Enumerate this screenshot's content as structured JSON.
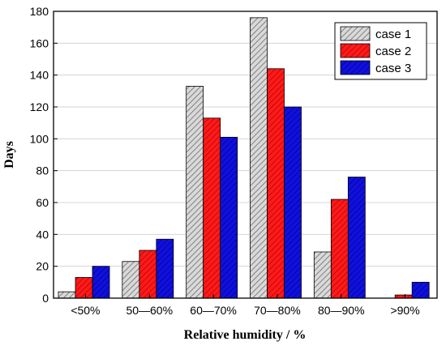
{
  "chart_data": {
    "type": "bar",
    "title": "",
    "xlabel": "Relative humidity / %",
    "ylabel": "Days",
    "ylim": [
      0,
      180
    ],
    "yticks": [
      0,
      20,
      40,
      60,
      80,
      100,
      120,
      140,
      160,
      180
    ],
    "grid": "horizontal",
    "legend_position": "top-right",
    "categories": [
      "<50%",
      "50—60%",
      "60—70%",
      "70—80%",
      "80—90%",
      ">90%"
    ],
    "series": [
      {
        "name": "case 1",
        "values": [
          4,
          23,
          133,
          176,
          29,
          0
        ],
        "color": "#bcbcbc",
        "pattern": "hatched"
      },
      {
        "name": "case 2",
        "values": [
          13,
          30,
          113,
          144,
          62,
          2
        ],
        "color": "#ee0000",
        "pattern": "hatched"
      },
      {
        "name": "case 3",
        "values": [
          20,
          37,
          101,
          120,
          76,
          10
        ],
        "color": "#0000cc",
        "pattern": "hatched"
      }
    ]
  }
}
